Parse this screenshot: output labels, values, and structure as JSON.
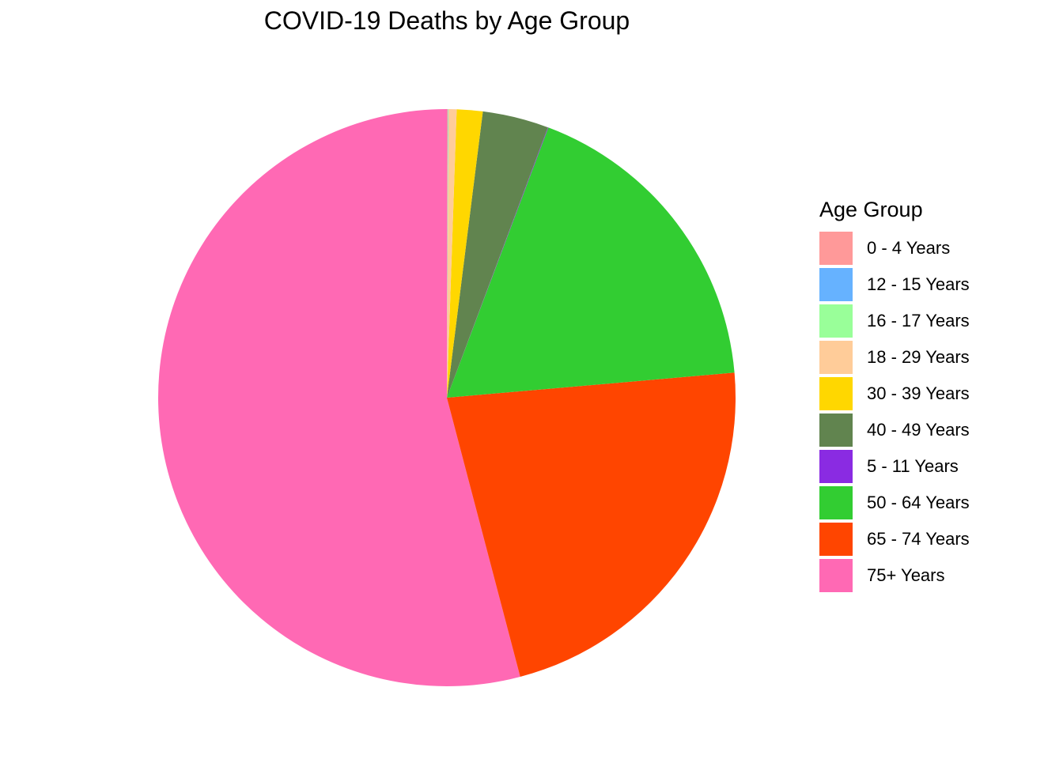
{
  "chart_data": {
    "type": "pie",
    "title": "COVID-19 Deaths by Age Group",
    "legend_title": "Age Group",
    "legend_position": "right",
    "categories": [
      "0 - 4 Years",
      "12 - 15 Years",
      "16 - 17 Years",
      "18 - 29 Years",
      "30 - 39 Years",
      "40 - 49 Years",
      "5 - 11 Years",
      "50 - 64 Years",
      "65 - 74 Years",
      "75+ Years"
    ],
    "values": [
      0.05,
      0.02,
      0.02,
      0.45,
      1.45,
      3.7,
      0.03,
      17.9,
      22.3,
      54.1
    ],
    "colors": [
      "#FF9999",
      "#66B2FF",
      "#99FF99",
      "#FFCC99",
      "#FFD700",
      "#61844F",
      "#8A2BE2",
      "#32CD32",
      "#FF4500",
      "#FF69B4"
    ]
  }
}
